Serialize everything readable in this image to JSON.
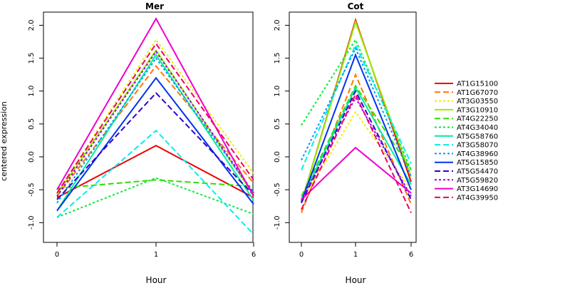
{
  "shared": {
    "ylabel": "centered expression",
    "xlabel": "Hour",
    "x_ticks": [
      "0",
      "1",
      "6"
    ],
    "y_ticks": [
      "-1.0",
      "-0.5",
      "0.0",
      "0.5",
      "1.0",
      "1.5",
      "2.0"
    ]
  },
  "legend": {
    "placement": "right",
    "entries": [
      {
        "name": "AT1G15100",
        "color": "#ee0000",
        "dash": "solid"
      },
      {
        "name": "AT1G67070",
        "color": "#ff7700",
        "dash": "dashed"
      },
      {
        "name": "AT3G03550",
        "color": "#eeee00",
        "dash": "dotted"
      },
      {
        "name": "AT3G10910",
        "color": "#99ee00",
        "dash": "solid"
      },
      {
        "name": "AT4G22250",
        "color": "#33dd00",
        "dash": "dashed"
      },
      {
        "name": "AT4G34040",
        "color": "#00ee33",
        "dash": "dotted"
      },
      {
        "name": "AT5G58760",
        "color": "#00ee99",
        "dash": "solid"
      },
      {
        "name": "AT3G58070",
        "color": "#00eeee",
        "dash": "dashed"
      },
      {
        "name": "AT4G38960",
        "color": "#0099ff",
        "dash": "dotted"
      },
      {
        "name": "AT5G15850",
        "color": "#0033ee",
        "dash": "solid"
      },
      {
        "name": "AT5G54470",
        "color": "#3300cc",
        "dash": "dashed"
      },
      {
        "name": "AT5G59820",
        "color": "#9900ee",
        "dash": "dotted"
      },
      {
        "name": "AT3G14690",
        "color": "#ee00cc",
        "dash": "solid"
      },
      {
        "name": "AT4G39950",
        "color": "#ee0066",
        "dash": "dashed"
      }
    ]
  },
  "chart_data": [
    {
      "type": "line",
      "title": "Mer",
      "x": [
        "0",
        "1",
        "6"
      ],
      "ylim": [
        -1.3,
        2.2
      ],
      "series": [
        {
          "name": "AT1G15100",
          "values": [
            -0.62,
            0.17,
            -0.62
          ]
        },
        {
          "name": "AT1G67070",
          "values": [
            -0.6,
            1.38,
            -0.4
          ]
        },
        {
          "name": "AT3G03550",
          "values": [
            -0.55,
            1.78,
            -0.25
          ]
        },
        {
          "name": "AT3G10910",
          "values": [
            -0.57,
            1.62,
            -0.58
          ]
        },
        {
          "name": "AT4G22250",
          "values": [
            -0.48,
            -0.35,
            -0.45
          ]
        },
        {
          "name": "AT4G34040",
          "values": [
            -0.92,
            -0.32,
            -0.87
          ]
        },
        {
          "name": "AT5G58760",
          "values": [
            -0.82,
            1.55,
            -0.66
          ]
        },
        {
          "name": "AT3G58070",
          "values": [
            -0.92,
            0.4,
            -1.18
          ]
        },
        {
          "name": "AT4G38960",
          "values": [
            -0.7,
            1.5,
            -0.55
          ]
        },
        {
          "name": "AT5G15850",
          "values": [
            -0.82,
            1.2,
            -0.72
          ]
        },
        {
          "name": "AT5G54470",
          "values": [
            -0.65,
            0.97,
            -0.58
          ]
        },
        {
          "name": "AT5G59820",
          "values": [
            -0.6,
            1.6,
            -0.55
          ]
        },
        {
          "name": "AT3G14690",
          "values": [
            -0.5,
            2.1,
            -0.6
          ]
        },
        {
          "name": "AT4G39950",
          "values": [
            -0.55,
            1.72,
            -0.35
          ]
        }
      ]
    },
    {
      "type": "line",
      "title": "Cot",
      "x": [
        "0",
        "1",
        "6"
      ],
      "ylim": [
        -1.3,
        2.2
      ],
      "series": [
        {
          "name": "AT1G15100",
          "values": [
            -0.7,
            2.08,
            -0.38
          ]
        },
        {
          "name": "AT1G67070",
          "values": [
            -0.85,
            1.25,
            -0.72
          ]
        },
        {
          "name": "AT3G03550",
          "values": [
            -0.68,
            0.68,
            -0.5
          ]
        },
        {
          "name": "AT3G10910",
          "values": [
            -0.7,
            2.05,
            -0.3
          ]
        },
        {
          "name": "AT4G22250",
          "values": [
            -0.6,
            1.08,
            -0.2
          ]
        },
        {
          "name": "AT4G34040",
          "values": [
            0.48,
            1.78,
            -0.2
          ]
        },
        {
          "name": "AT5G58760",
          "values": [
            -0.65,
            1.05,
            -0.42
          ]
        },
        {
          "name": "AT3G58070",
          "values": [
            -0.2,
            1.7,
            -0.1
          ]
        },
        {
          "name": "AT4G38960",
          "values": [
            -0.05,
            1.65,
            -0.3
          ]
        },
        {
          "name": "AT5G15850",
          "values": [
            -0.68,
            1.55,
            -0.5
          ]
        },
        {
          "name": "AT5G54470",
          "values": [
            -0.7,
            1.0,
            -0.65
          ]
        },
        {
          "name": "AT5G59820",
          "values": [
            -0.65,
            0.9,
            -0.6
          ]
        },
        {
          "name": "AT3G14690",
          "values": [
            -0.65,
            0.14,
            -0.55
          ]
        },
        {
          "name": "AT4G39950",
          "values": [
            -0.8,
            0.95,
            -0.85
          ]
        }
      ]
    }
  ]
}
